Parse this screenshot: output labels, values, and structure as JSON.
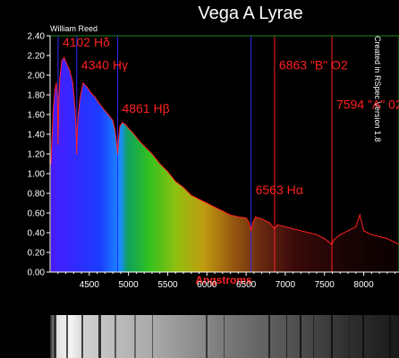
{
  "header": {
    "title": "Vega A Lyrae",
    "author": "William Reed",
    "credit": "Created in RSpec Version 1.8"
  },
  "chart_data": {
    "type": "line",
    "title": "Vega A Lyrae",
    "xlabel": "Angstroms",
    "ylabel": "",
    "xlim": [
      4000,
      8450
    ],
    "ylim": [
      0,
      2.4
    ],
    "x_ticks": [
      4500,
      5000,
      5500,
      6000,
      6500,
      7000,
      7500,
      8000
    ],
    "y_ticks": [
      0.0,
      0.2,
      0.4,
      0.6,
      0.8,
      1.0,
      1.2,
      1.4,
      1.6,
      1.8,
      2.0,
      2.2,
      2.4
    ],
    "grid": false,
    "series": [
      {
        "x": [
          4010,
          4040,
          4060,
          4080,
          4095,
          4102,
          4110,
          4125,
          4150,
          4180,
          4210,
          4250,
          4290,
          4320,
          4335,
          4340,
          4346,
          4360,
          4380,
          4420,
          4470,
          4520,
          4570,
          4620,
          4680,
          4740,
          4800,
          4830,
          4850,
          4861,
          4872,
          4890,
          4920,
          4960,
          5000,
          5050,
          5100,
          5150,
          5200,
          5300,
          5400,
          5500,
          5600,
          5700,
          5800,
          5900,
          6000,
          6100,
          6200,
          6300,
          6400,
          6500,
          6540,
          6563,
          6585,
          6620,
          6700,
          6800,
          6863,
          6900,
          7000,
          7100,
          7200,
          7300,
          7400,
          7500,
          7594,
          7620,
          7700,
          7800,
          7900,
          7950,
          8000,
          8050,
          8100,
          8200,
          8300,
          8400,
          8450
        ],
        "y": [
          1.1,
          1.65,
          1.85,
          1.92,
          1.75,
          1.3,
          1.7,
          1.98,
          2.15,
          2.18,
          2.12,
          2.05,
          1.92,
          1.65,
          1.35,
          1.2,
          1.42,
          1.62,
          1.76,
          1.92,
          1.88,
          1.82,
          1.78,
          1.72,
          1.66,
          1.6,
          1.54,
          1.44,
          1.3,
          1.2,
          1.34,
          1.48,
          1.52,
          1.5,
          1.46,
          1.42,
          1.37,
          1.32,
          1.28,
          1.2,
          1.1,
          1.02,
          0.92,
          0.86,
          0.78,
          0.74,
          0.7,
          0.66,
          0.62,
          0.58,
          0.56,
          0.55,
          0.5,
          0.42,
          0.5,
          0.56,
          0.54,
          0.5,
          0.44,
          0.48,
          0.46,
          0.44,
          0.42,
          0.4,
          0.38,
          0.34,
          0.28,
          0.33,
          0.38,
          0.42,
          0.46,
          0.58,
          0.42,
          0.4,
          0.38,
          0.36,
          0.34,
          0.3,
          0.28
        ]
      }
    ],
    "annotations": [
      {
        "text": "4102 Hδ",
        "x": 4102,
        "y": 2.29,
        "line": "blue"
      },
      {
        "text": "4340 Hγ",
        "x": 4340,
        "y": 2.06,
        "line": "blue"
      },
      {
        "text": "4861 Hβ",
        "x": 4861,
        "y": 1.62,
        "line": "blue"
      },
      {
        "text": "6563 Hα",
        "x": 6563,
        "y": 0.79,
        "line": "blue"
      },
      {
        "text": "6863 \"B\" O2",
        "x": 6863,
        "y": 2.06,
        "line": "red"
      },
      {
        "text": "7594 \"A\"  02",
        "x": 7594,
        "y": 1.66,
        "line": "red"
      }
    ],
    "colors": {
      "label": "#ff2020",
      "blue_line": "#2a2aff",
      "red_line": "#ff2020",
      "frame": "#1a8a1a",
      "curve": "#ff2020"
    }
  }
}
